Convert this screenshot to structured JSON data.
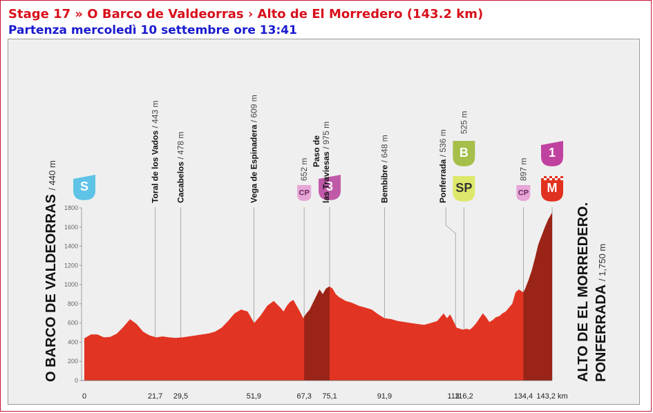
{
  "header": {
    "title": "Stage 17 » O Barco de Valdeorras › Alto de El Morredero (143.2 km)",
    "subtitle": "Partenza mercoledì 10 settembre ore 13:41"
  },
  "colors": {
    "profile_fill": "#e23422",
    "profile_climb": "#9a2417",
    "start_badge": "#5ec3e6",
    "cp_badge": "#e7a6d8",
    "cat3_badge": "#c05aa8",
    "bonus_badge": "#a5bf4a",
    "sprint_badge": "#dde86a",
    "cat1_badge": "#c042a0",
    "finish_badge": "#e0321e",
    "title_color": "#d8101c",
    "subtitle_color": "#1a1ad0"
  },
  "chart_data": {
    "type": "area",
    "title": "",
    "xlabel": "",
    "ylabel": "",
    "x_unit": "km",
    "xlim": [
      0,
      143.2
    ],
    "ylim": [
      0,
      1800
    ],
    "y_ticks": [
      0,
      200,
      400,
      600,
      800,
      1000,
      1200,
      1400,
      1600,
      1800
    ],
    "x_tick_labels": [
      "0",
      "21,7",
      "29,5",
      "51,9",
      "67,3",
      "75,1",
      "91,9",
      "113",
      "116,2",
      "134,4",
      "143,2 km"
    ],
    "profile": [
      [
        0,
        440
      ],
      [
        2,
        480
      ],
      [
        4,
        480
      ],
      [
        6,
        450
      ],
      [
        8,
        455
      ],
      [
        10,
        490
      ],
      [
        12,
        560
      ],
      [
        14,
        640
      ],
      [
        16,
        590
      ],
      [
        18,
        510
      ],
      [
        20,
        470
      ],
      [
        22,
        450
      ],
      [
        24,
        460
      ],
      [
        26,
        450
      ],
      [
        28,
        445
      ],
      [
        30,
        450
      ],
      [
        32,
        460
      ],
      [
        34,
        470
      ],
      [
        36,
        480
      ],
      [
        38,
        490
      ],
      [
        40,
        510
      ],
      [
        42,
        550
      ],
      [
        44,
        620
      ],
      [
        46,
        700
      ],
      [
        48,
        740
      ],
      [
        50,
        720
      ],
      [
        52,
        600
      ],
      [
        54,
        680
      ],
      [
        56,
        780
      ],
      [
        58,
        830
      ],
      [
        60,
        760
      ],
      [
        61,
        720
      ],
      [
        62,
        780
      ],
      [
        63,
        820
      ],
      [
        64,
        840
      ],
      [
        65,
        780
      ],
      [
        66,
        720
      ],
      [
        67,
        650
      ],
      [
        68,
        700
      ],
      [
        69,
        740
      ],
      [
        70,
        810
      ],
      [
        71,
        880
      ],
      [
        72,
        950
      ],
      [
        73,
        900
      ],
      [
        74,
        960
      ],
      [
        75,
        980
      ],
      [
        76,
        960
      ],
      [
        77,
        900
      ],
      [
        78,
        870
      ],
      [
        79,
        850
      ],
      [
        80,
        830
      ],
      [
        82,
        810
      ],
      [
        84,
        780
      ],
      [
        86,
        760
      ],
      [
        88,
        740
      ],
      [
        90,
        690
      ],
      [
        91.9,
        650
      ],
      [
        94,
        640
      ],
      [
        96,
        620
      ],
      [
        98,
        610
      ],
      [
        100,
        600
      ],
      [
        102,
        590
      ],
      [
        104,
        580
      ],
      [
        106,
        600
      ],
      [
        108,
        620
      ],
      [
        110,
        700
      ],
      [
        111,
        650
      ],
      [
        112,
        690
      ],
      [
        113,
        620
      ],
      [
        114,
        550
      ],
      [
        116,
        530
      ],
      [
        117,
        540
      ],
      [
        118,
        530
      ],
      [
        119,
        560
      ],
      [
        120,
        600
      ],
      [
        121,
        650
      ],
      [
        122,
        700
      ],
      [
        123,
        660
      ],
      [
        124,
        610
      ],
      [
        125,
        630
      ],
      [
        126,
        660
      ],
      [
        127,
        670
      ],
      [
        128,
        700
      ],
      [
        129,
        720
      ],
      [
        130,
        760
      ],
      [
        131,
        800
      ],
      [
        132,
        920
      ],
      [
        133,
        950
      ],
      [
        134.4,
        920
      ],
      [
        135,
        960
      ],
      [
        136,
        1050
      ],
      [
        137,
        1150
      ],
      [
        138,
        1280
      ],
      [
        139,
        1420
      ],
      [
        140,
        1510
      ],
      [
        141,
        1600
      ],
      [
        142,
        1680
      ],
      [
        143.2,
        1750
      ]
    ],
    "climb_segments": [
      [
        67.3,
        75.1
      ],
      [
        134.4,
        143.2
      ]
    ],
    "waypoints": [
      {
        "km": 0,
        "km_label": "0",
        "badge": "S",
        "kind": "start"
      },
      {
        "km": 21.7,
        "km_label": "21,7",
        "name": "Toral de los Vados",
        "alt": "/ 443 m"
      },
      {
        "km": 29.5,
        "km_label": "29,5",
        "name": "Cacabelos",
        "alt": "/ 478 m"
      },
      {
        "km": 51.9,
        "km_label": "51,9",
        "name": "Vega de Espinadera",
        "alt": "/ 609 m"
      },
      {
        "km": 67.3,
        "km_label": "67,3",
        "alt": "652 m",
        "badge": "CP",
        "kind": "cp"
      },
      {
        "km": 75.1,
        "km_label": "75,1",
        "name": "Paso de",
        "name2": "las Traviesas",
        "alt": "/ 975 m",
        "badge": "3",
        "kind": "cat3"
      },
      {
        "km": 91.9,
        "km_label": "91,9",
        "name": "Bembibre",
        "alt": "/ 648 m"
      },
      {
        "km": 113,
        "km_label": "113",
        "name": "Ponferrada",
        "alt": "/ 536 m"
      },
      {
        "km": 116.2,
        "km_label": "116,2",
        "alt": "525 m",
        "badge": "B",
        "badge2": "SP",
        "kind": "bonus"
      },
      {
        "km": 134.4,
        "km_label": "134,4",
        "alt": "897 m",
        "badge": "CP",
        "kind": "cp"
      },
      {
        "km": 143.2,
        "km_label": "143,2 km",
        "badge": "1",
        "badge2": "M",
        "kind": "finish"
      }
    ],
    "start_label": {
      "name": "O BARCO DE VALDEORRAS",
      "alt": "/ 440 m"
    },
    "finish_label": {
      "name": "ALTO DE EL MORREDERO.",
      "name2": "PONFERRADA",
      "alt": "/ 1,750 m"
    }
  }
}
